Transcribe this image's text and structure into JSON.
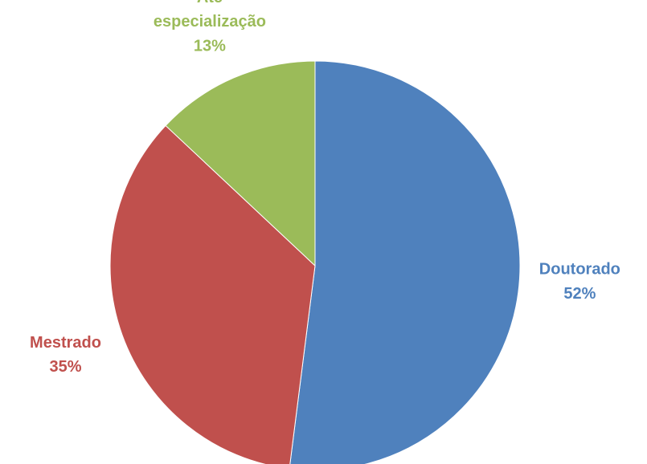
{
  "chart_data": {
    "type": "pie",
    "categories": [
      "Doutorado",
      "Mestrado",
      "Até especialização"
    ],
    "values": [
      52,
      35,
      13
    ],
    "value_labels": [
      "52%",
      "35%",
      "13%"
    ],
    "colors": [
      "#4f81bd",
      "#c0504d",
      "#9bbb59"
    ]
  }
}
